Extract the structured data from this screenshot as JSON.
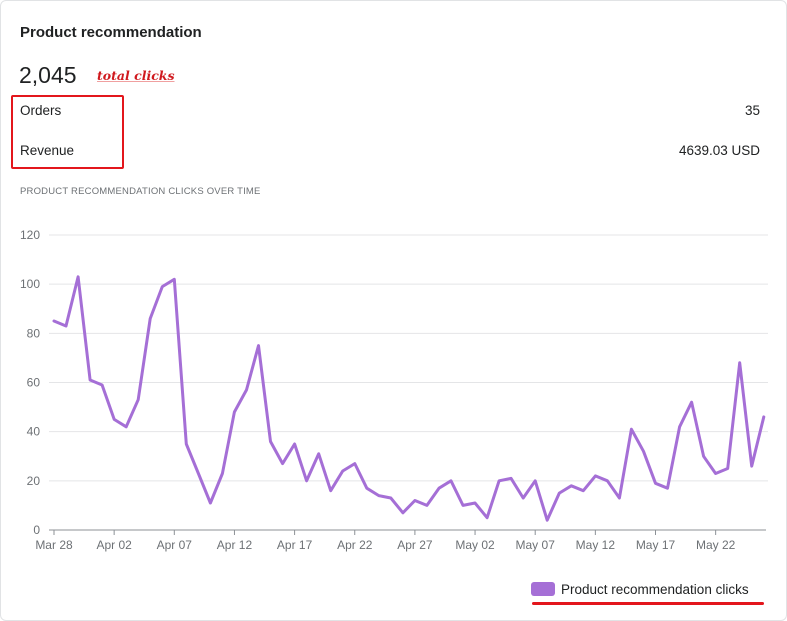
{
  "card": {
    "title": "Product recommendation",
    "total_clicks": "2,045",
    "total_clicks_annotation": "total clicks",
    "rows": [
      {
        "label": "Orders",
        "value": "35"
      },
      {
        "label": "Revenue",
        "value": "4639.03 USD"
      }
    ],
    "chart_label": "PRODUCT RECOMMENDATION CLICKS OVER TIME",
    "legend_label": "Product recommendation clicks"
  },
  "colors": {
    "series": "#a56fd6",
    "annotation": "#e3161c",
    "grid": "#e4e5e7",
    "axis_text": "#6d7175"
  },
  "chart_data": {
    "type": "line",
    "title": "PRODUCT RECOMMENDATION CLICKS OVER TIME",
    "xlabel": "",
    "ylabel": "",
    "ylim": [
      0,
      120
    ],
    "yticks": [
      0,
      20,
      40,
      60,
      80,
      100,
      120
    ],
    "grid": true,
    "legend_position": "bottom-right",
    "x_tick_labels": [
      "Mar 28",
      "Apr 02",
      "Apr 07",
      "Apr 12",
      "Apr 17",
      "Apr 22",
      "Apr 27",
      "May 02",
      "May 07",
      "May 12",
      "May 17",
      "May 22"
    ],
    "x_tick_interval_days": 5,
    "series": [
      {
        "name": "Product recommendation clicks",
        "start_date": "Mar 28",
        "values": [
          85,
          83,
          103,
          61,
          59,
          45,
          42,
          53,
          86,
          99,
          102,
          35,
          23,
          11,
          23,
          48,
          57,
          75,
          36,
          27,
          35,
          20,
          31,
          16,
          24,
          27,
          17,
          14,
          13,
          7,
          12,
          10,
          17,
          20,
          10,
          11,
          5,
          20,
          21,
          13,
          20,
          4,
          15,
          18,
          16,
          22,
          20,
          13,
          41,
          32,
          19,
          17,
          42,
          52,
          30,
          23,
          25,
          68,
          26,
          46
        ]
      }
    ]
  }
}
